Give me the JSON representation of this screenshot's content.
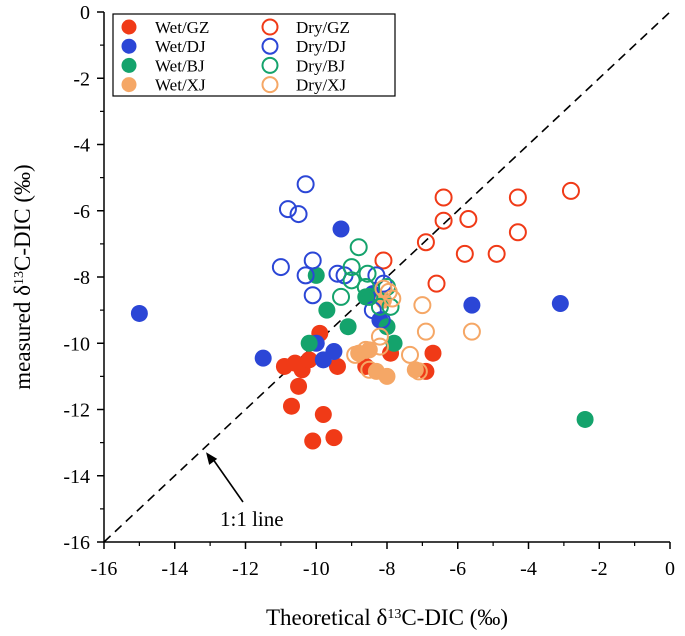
{
  "colors": {
    "GZ": "#f03a17",
    "DJ": "#2b46d6",
    "BJ": "#14a36c",
    "XJ": "#f5a766",
    "axis": "#000000"
  },
  "chart_data": {
    "type": "scatter",
    "title": "",
    "xlabel": {
      "prefix": "Theoretical δ",
      "sup": "13",
      "suffix": "C-DIC (‰)"
    },
    "ylabel": {
      "prefix": "measured δ",
      "sup": "13",
      "suffix": "C-DIC (‰)"
    },
    "xlim": [
      -16,
      0
    ],
    "ylim": [
      -16,
      0
    ],
    "xticks": [
      -16,
      -14,
      -12,
      -10,
      -8,
      -6,
      -4,
      -2,
      0
    ],
    "yticks": [
      -16,
      -14,
      -12,
      -10,
      -8,
      -6,
      -4,
      -2,
      0
    ],
    "grid": false,
    "legend_position": "top-left",
    "annotation": {
      "text": "1:1 line",
      "points_to": [
        -13.2,
        -13.2
      ]
    },
    "reference_line": {
      "name": "1:1 line",
      "from": [
        -16,
        -16
      ],
      "to": [
        0,
        0
      ],
      "style": "dashed"
    },
    "series": [
      {
        "name": "Wet/GZ",
        "color_key": "GZ",
        "filled": true,
        "points": [
          [
            -10.9,
            -10.7
          ],
          [
            -10.7,
            -11.9
          ],
          [
            -10.5,
            -11.3
          ],
          [
            -10.4,
            -10.8
          ],
          [
            -10.6,
            -10.6
          ],
          [
            -10.2,
            -10.5
          ],
          [
            -9.9,
            -9.7
          ],
          [
            -9.8,
            -12.15
          ],
          [
            -10.1,
            -12.95
          ],
          [
            -9.5,
            -12.85
          ],
          [
            -9.4,
            -10.7
          ],
          [
            -8.6,
            -10.7
          ],
          [
            -7.9,
            -10.3
          ],
          [
            -6.9,
            -10.85
          ],
          [
            -6.7,
            -10.3
          ]
        ]
      },
      {
        "name": "Wet/DJ",
        "color_key": "DJ",
        "filled": true,
        "points": [
          [
            -15.0,
            -9.1
          ],
          [
            -11.5,
            -10.45
          ],
          [
            -10.0,
            -10.0
          ],
          [
            -9.8,
            -10.5
          ],
          [
            -9.5,
            -10.25
          ],
          [
            -9.3,
            -6.55
          ],
          [
            -8.4,
            -8.5
          ],
          [
            -8.2,
            -9.3
          ],
          [
            -5.6,
            -8.85
          ],
          [
            -3.1,
            -8.8
          ]
        ]
      },
      {
        "name": "Wet/BJ",
        "color_key": "BJ",
        "filled": true,
        "points": [
          [
            -10.0,
            -7.95
          ],
          [
            -9.7,
            -9.0
          ],
          [
            -10.2,
            -10.0
          ],
          [
            -9.1,
            -9.5
          ],
          [
            -8.6,
            -8.6
          ],
          [
            -8.0,
            -9.5
          ],
          [
            -7.8,
            -10.0
          ],
          [
            -2.4,
            -12.3
          ]
        ]
      },
      {
        "name": "Wet/XJ",
        "color_key": "XJ",
        "filled": true,
        "points": [
          [
            -8.8,
            -10.3
          ],
          [
            -8.5,
            -10.2
          ],
          [
            -8.3,
            -10.85
          ],
          [
            -8.0,
            -11.0
          ],
          [
            -7.2,
            -10.8
          ],
          [
            -8.1,
            -8.7
          ]
        ]
      },
      {
        "name": "Dry/GZ",
        "color_key": "GZ",
        "filled": false,
        "points": [
          [
            -6.4,
            -5.6
          ],
          [
            -6.4,
            -6.3
          ],
          [
            -5.7,
            -6.25
          ],
          [
            -5.8,
            -7.3
          ],
          [
            -6.9,
            -6.95
          ],
          [
            -6.6,
            -8.2
          ],
          [
            -4.9,
            -7.3
          ],
          [
            -4.3,
            -6.65
          ],
          [
            -4.3,
            -5.6
          ],
          [
            -2.8,
            -5.4
          ],
          [
            -8.1,
            -7.5
          ]
        ]
      },
      {
        "name": "Dry/DJ",
        "color_key": "DJ",
        "filled": false,
        "points": [
          [
            -10.3,
            -5.2
          ],
          [
            -10.8,
            -5.95
          ],
          [
            -10.5,
            -6.1
          ],
          [
            -11.0,
            -7.7
          ],
          [
            -10.3,
            -7.95
          ],
          [
            -10.1,
            -7.5
          ],
          [
            -10.1,
            -8.55
          ],
          [
            -9.4,
            -7.9
          ],
          [
            -9.2,
            -7.95
          ],
          [
            -8.3,
            -7.95
          ],
          [
            -8.1,
            -8.2
          ],
          [
            -8.4,
            -9.0
          ],
          [
            -8.15,
            -9.3
          ]
        ]
      },
      {
        "name": "Dry/BJ",
        "color_key": "BJ",
        "filled": false,
        "points": [
          [
            -9.3,
            -8.6
          ],
          [
            -9.0,
            -8.1
          ],
          [
            -9.0,
            -7.7
          ],
          [
            -8.8,
            -7.1
          ],
          [
            -8.55,
            -7.9
          ],
          [
            -8.5,
            -8.6
          ],
          [
            -8.2,
            -8.9
          ],
          [
            -8.6,
            -8.3
          ],
          [
            -8.0,
            -8.3
          ],
          [
            -7.9,
            -8.9
          ]
        ]
      },
      {
        "name": "Dry/XJ",
        "color_key": "XJ",
        "filled": false,
        "points": [
          [
            -7.0,
            -8.85
          ],
          [
            -6.9,
            -9.65
          ],
          [
            -5.6,
            -9.65
          ],
          [
            -7.35,
            -10.35
          ],
          [
            -7.1,
            -10.85
          ],
          [
            -8.2,
            -9.8
          ],
          [
            -8.6,
            -10.2
          ],
          [
            -8.9,
            -10.35
          ],
          [
            -8.5,
            -10.8
          ],
          [
            -7.95,
            -8.45
          ],
          [
            -7.85,
            -8.65
          ],
          [
            -8.1,
            -8.35
          ],
          [
            -8.2,
            -10.1
          ]
        ]
      }
    ]
  }
}
